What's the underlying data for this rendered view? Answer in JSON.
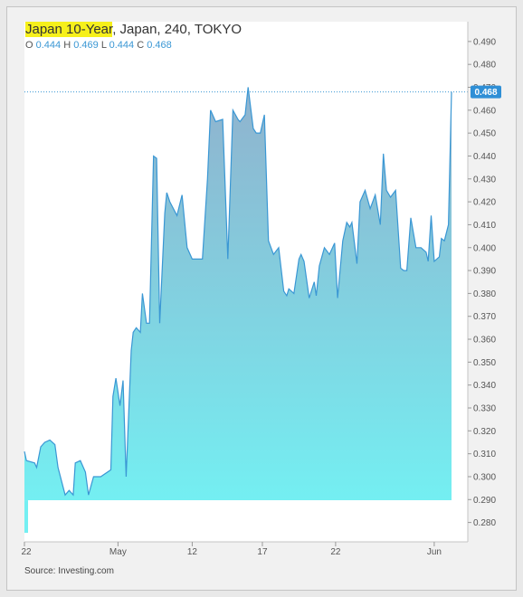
{
  "header": {
    "title_highlight": "Japan 10-Year",
    "title_rest": ", Japan, 240, TOKYO",
    "ohlc": [
      {
        "label": "O",
        "value": "0.444"
      },
      {
        "label": "H",
        "value": "0.469"
      },
      {
        "label": "L",
        "value": "0.444"
      },
      {
        "label": "C",
        "value": "0.468"
      }
    ]
  },
  "source": "Source: Investing.com",
  "colors": {
    "line": "#3a97d4",
    "fill_top": "#8aaecb",
    "fill_bottom": "#74eff2",
    "price_badge": "#2f8fd6",
    "title_highlight": "#f6f01b"
  },
  "chart_data": {
    "type": "area",
    "ylim": [
      0.2755,
      0.4935
    ],
    "xlim": [
      0,
      42
    ],
    "yticks": [
      "0.490",
      "0.480",
      "0.470",
      "0.460",
      "0.450",
      "0.440",
      "0.430",
      "0.420",
      "0.410",
      "0.400",
      "0.390",
      "0.380",
      "0.370",
      "0.360",
      "0.350",
      "0.340",
      "0.330",
      "0.320",
      "0.310",
      "0.300",
      "0.290",
      "0.280"
    ],
    "xticks": [
      {
        "label": "22",
        "x": 0
      },
      {
        "label": "May",
        "x": 9.2
      },
      {
        "label": "12",
        "x": 16.5
      },
      {
        "label": "17",
        "x": 23.4
      },
      {
        "label": "22",
        "x": 30.6
      },
      {
        "label": "Jun",
        "x": 40.3
      }
    ],
    "last_price": 0.468,
    "last_price_label": "0.468",
    "grid": false,
    "x": [
      0,
      0.2,
      1,
      1.2,
      1.6,
      2,
      2.5,
      3,
      3.3,
      4,
      4.4,
      4.8,
      5,
      5.5,
      6,
      6.3,
      6.8,
      7,
      7.5,
      8.5,
      8.7,
      9,
      9.4,
      9.7,
      10,
      10.5,
      10.7,
      11,
      11.4,
      11.6,
      12,
      12.3,
      12.7,
      13,
      13.3,
      13.8,
      14,
      14.3,
      15,
      15.5,
      16,
      16.5,
      16.8,
      17.5,
      18,
      18.3,
      18.8,
      19.5,
      20,
      20.5,
      21,
      21.2,
      21.7,
      22,
      22.5,
      22.8,
      23.2,
      23.6,
      24,
      24.5,
      25,
      25.5,
      25.8,
      26,
      26.5,
      27,
      27.2,
      27.5,
      28,
      28.5,
      28.7,
      29,
      29.5,
      30,
      30.5,
      30.8,
      31.3,
      31.7,
      32,
      32.2,
      32.7,
      33,
      33.5,
      34,
      34.5,
      35,
      35.3,
      35.6,
      36,
      36.5,
      37,
      37.3,
      37.6,
      38,
      38.5,
      39,
      39.5,
      39.7,
      40,
      40.3,
      40.8,
      41,
      41.3,
      41.7,
      42
    ],
    "y": [
      0.311,
      0.307,
      0.306,
      0.304,
      0.313,
      0.315,
      0.316,
      0.314,
      0.304,
      0.292,
      0.294,
      0.292,
      0.306,
      0.307,
      0.302,
      0.292,
      0.3,
      0.3,
      0.3,
      0.303,
      0.335,
      0.343,
      0.331,
      0.342,
      0.3,
      0.355,
      0.363,
      0.365,
      0.363,
      0.38,
      0.367,
      0.367,
      0.44,
      0.439,
      0.367,
      0.415,
      0.424,
      0.42,
      0.414,
      0.423,
      0.4,
      0.395,
      0.395,
      0.395,
      0.43,
      0.46,
      0.455,
      0.456,
      0.395,
      0.46,
      0.456,
      0.455,
      0.458,
      0.47,
      0.452,
      0.45,
      0.45,
      0.458,
      0.403,
      0.397,
      0.4,
      0.381,
      0.379,
      0.382,
      0.38,
      0.395,
      0.397,
      0.394,
      0.378,
      0.385,
      0.379,
      0.392,
      0.4,
      0.397,
      0.402,
      0.378,
      0.403,
      0.411,
      0.409,
      0.411,
      0.393,
      0.42,
      0.425,
      0.417,
      0.423,
      0.41,
      0.441,
      0.425,
      0.422,
      0.425,
      0.391,
      0.39,
      0.39,
      0.413,
      0.4,
      0.4,
      0.398,
      0.394,
      0.414,
      0.394,
      0.396,
      0.404,
      0.403,
      0.41,
      0.468
    ]
  }
}
